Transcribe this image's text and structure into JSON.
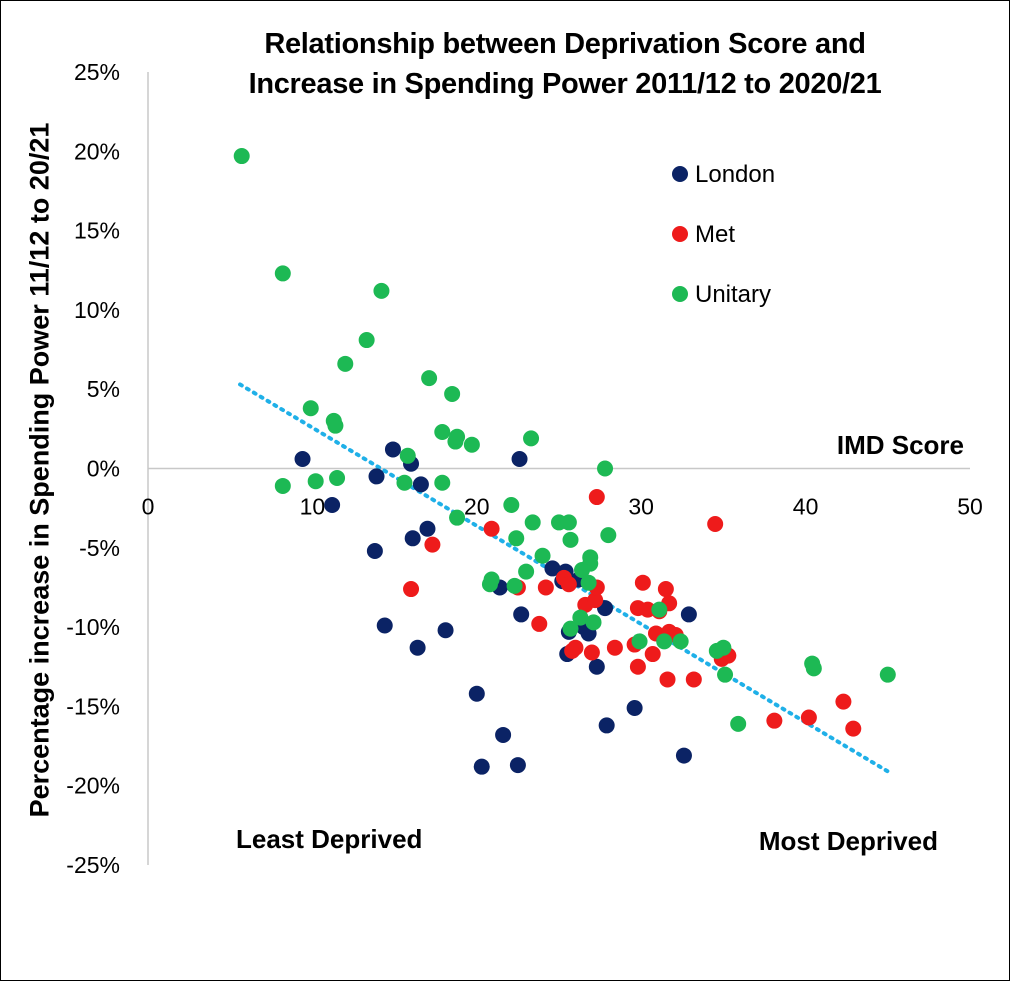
{
  "chart_data": {
    "type": "scatter",
    "title_line1": "Relationship between Deprivation Score and",
    "title_line2": "Increase in Spending Power 2011/12 to 2020/21",
    "xlabel": "IMD Score",
    "ylabel": "Percentage increase in Spending Power 11/12 to 20/21",
    "xlim": [
      0,
      50
    ],
    "ylim": [
      -25,
      25
    ],
    "x_ticks": [
      "0",
      "10",
      "20",
      "30",
      "40",
      "50"
    ],
    "y_ticks": [
      "25%",
      "20%",
      "15%",
      "10%",
      "5%",
      "0%",
      "-5%",
      "-10%",
      "-15%",
      "-20%",
      "-25%"
    ],
    "annotations": {
      "left": "Least Deprived",
      "right": "Most Deprived"
    },
    "legend_position": "top-right",
    "trendline": {
      "style": "dotted",
      "color": "#1fb0e8",
      "x": [
        5.6,
        45
      ],
      "y": [
        5.3,
        -19.1
      ]
    },
    "series": [
      {
        "name": "London",
        "color": "#0b2365",
        "points": [
          [
            9.4,
            0.6
          ],
          [
            11.2,
            -2.3
          ],
          [
            13.9,
            -0.5
          ],
          [
            14.9,
            1.2
          ],
          [
            16.0,
            0.3
          ],
          [
            16.6,
            -1.0
          ],
          [
            13.8,
            -5.2
          ],
          [
            16.1,
            -4.4
          ],
          [
            17.0,
            -3.8
          ],
          [
            14.4,
            -9.9
          ],
          [
            16.4,
            -11.3
          ],
          [
            18.1,
            -10.2
          ],
          [
            20.0,
            -14.2
          ],
          [
            20.3,
            -18.8
          ],
          [
            21.6,
            -16.8
          ],
          [
            22.5,
            -18.7
          ],
          [
            22.6,
            0.6
          ],
          [
            21.4,
            -7.5
          ],
          [
            22.7,
            -9.2
          ],
          [
            24.6,
            -6.3
          ],
          [
            25.4,
            -6.5
          ],
          [
            25.2,
            -7.1
          ],
          [
            26.2,
            -7.0
          ],
          [
            25.6,
            -10.3
          ],
          [
            26.5,
            -10.0
          ],
          [
            26.8,
            -10.4
          ],
          [
            25.5,
            -11.7
          ],
          [
            27.3,
            -12.5
          ],
          [
            27.8,
            -8.8
          ],
          [
            27.9,
            -16.2
          ],
          [
            29.6,
            -15.1
          ],
          [
            32.9,
            -9.2
          ],
          [
            32.6,
            -18.1
          ]
        ]
      },
      {
        "name": "Met",
        "color": "#ee1b1b",
        "points": [
          [
            16.0,
            -7.6
          ],
          [
            17.3,
            -4.8
          ],
          [
            20.9,
            -3.8
          ],
          [
            22.5,
            -7.5
          ],
          [
            23.8,
            -9.8
          ],
          [
            24.2,
            -7.5
          ],
          [
            25.3,
            -6.9
          ],
          [
            25.6,
            -7.3
          ],
          [
            25.8,
            -11.5
          ],
          [
            26.0,
            -11.3
          ],
          [
            26.6,
            -8.6
          ],
          [
            27.2,
            -8.3
          ],
          [
            27.3,
            -7.5
          ],
          [
            27.3,
            -1.8
          ],
          [
            27.0,
            -11.6
          ],
          [
            28.4,
            -11.3
          ],
          [
            29.6,
            -11.1
          ],
          [
            29.8,
            -8.8
          ],
          [
            29.8,
            -12.5
          ],
          [
            30.1,
            -7.2
          ],
          [
            30.4,
            -8.9
          ],
          [
            30.7,
            -11.7
          ],
          [
            30.9,
            -10.4
          ],
          [
            31.1,
            -9.0
          ],
          [
            31.5,
            -7.6
          ],
          [
            31.7,
            -8.5
          ],
          [
            31.7,
            -10.3
          ],
          [
            31.6,
            -13.3
          ],
          [
            32.1,
            -10.5
          ],
          [
            33.2,
            -13.3
          ],
          [
            34.5,
            -3.5
          ],
          [
            34.9,
            -12.0
          ],
          [
            35.3,
            -11.8
          ],
          [
            38.1,
            -15.9
          ],
          [
            40.2,
            -15.7
          ],
          [
            42.3,
            -14.7
          ],
          [
            42.9,
            -16.4
          ]
        ]
      },
      {
        "name": "Unitary",
        "color": "#1db954",
        "points": [
          [
            5.7,
            19.7
          ],
          [
            8.2,
            12.3
          ],
          [
            8.2,
            -1.1
          ],
          [
            9.9,
            3.8
          ],
          [
            10.2,
            -0.8
          ],
          [
            11.3,
            3.0
          ],
          [
            11.5,
            -0.6
          ],
          [
            11.4,
            2.7
          ],
          [
            12.0,
            6.6
          ],
          [
            13.3,
            8.1
          ],
          [
            14.2,
            11.2
          ],
          [
            15.8,
            0.8
          ],
          [
            15.6,
            -0.9
          ],
          [
            17.1,
            5.7
          ],
          [
            17.9,
            2.3
          ],
          [
            17.9,
            -0.9
          ],
          [
            18.5,
            4.7
          ],
          [
            18.7,
            1.7
          ],
          [
            18.8,
            2.0
          ],
          [
            18.8,
            -3.1
          ],
          [
            19.7,
            1.5
          ],
          [
            20.8,
            -7.3
          ],
          [
            20.9,
            -7.0
          ],
          [
            22.1,
            -2.3
          ],
          [
            22.4,
            -4.4
          ],
          [
            22.3,
            -7.4
          ],
          [
            23.0,
            -6.5
          ],
          [
            23.3,
            1.9
          ],
          [
            23.4,
            -3.4
          ],
          [
            24.0,
            -5.5
          ],
          [
            25.0,
            -3.4
          ],
          [
            25.6,
            -3.4
          ],
          [
            25.7,
            -4.5
          ],
          [
            25.7,
            -10.1
          ],
          [
            26.3,
            -9.4
          ],
          [
            26.4,
            -6.4
          ],
          [
            26.8,
            -7.2
          ],
          [
            26.9,
            -6.0
          ],
          [
            26.9,
            -5.6
          ],
          [
            27.1,
            -9.7
          ],
          [
            27.8,
            0.0
          ],
          [
            28.0,
            -4.2
          ],
          [
            29.9,
            -10.9
          ],
          [
            31.1,
            -8.9
          ],
          [
            31.4,
            -10.9
          ],
          [
            32.4,
            -10.9
          ],
          [
            34.6,
            -11.5
          ],
          [
            35.0,
            -11.3
          ],
          [
            35.1,
            -13.0
          ],
          [
            35.9,
            -16.1
          ],
          [
            40.4,
            -12.3
          ],
          [
            40.5,
            -12.6
          ],
          [
            45.0,
            -13.0
          ]
        ]
      }
    ]
  }
}
